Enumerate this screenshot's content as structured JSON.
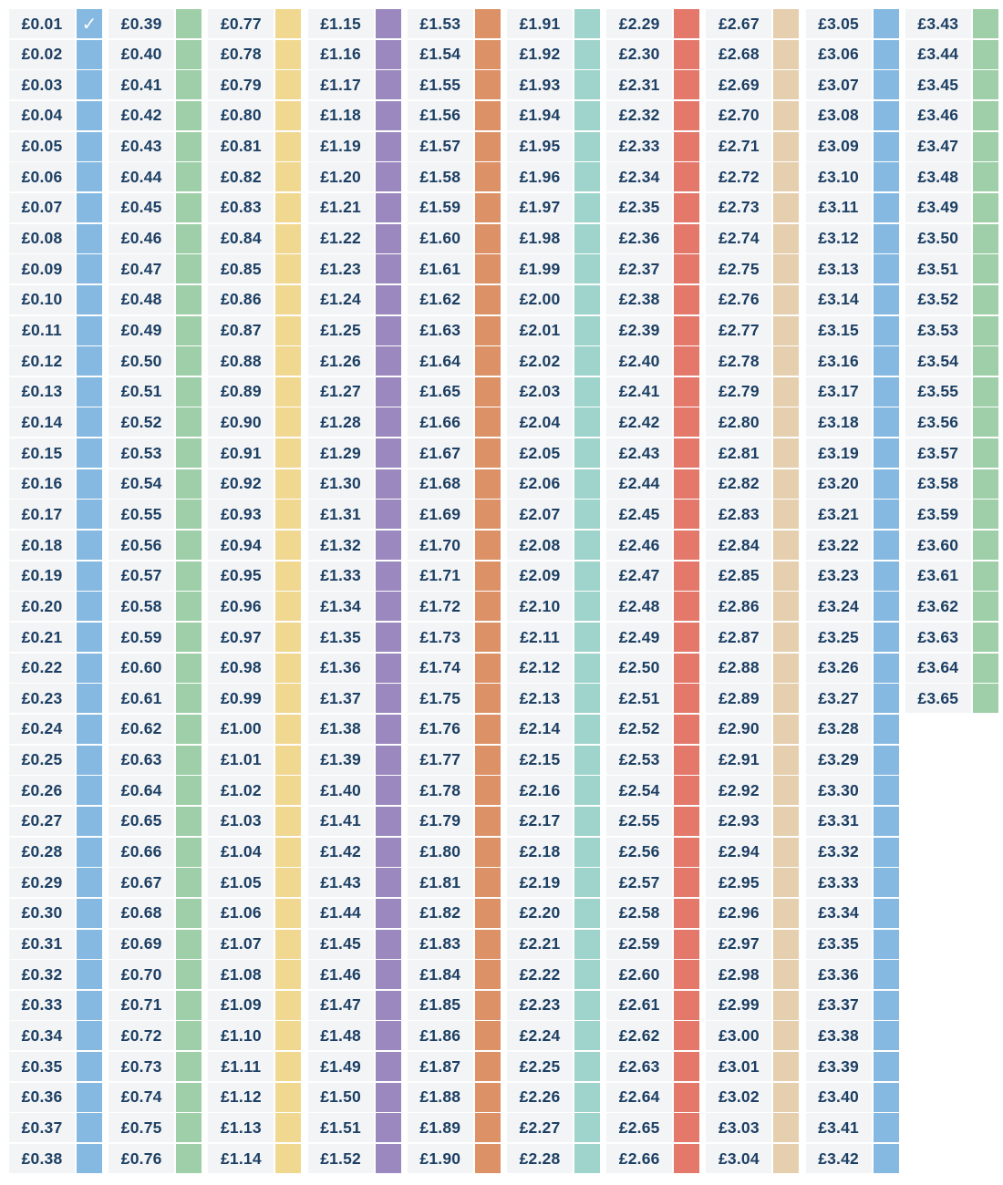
{
  "currency_symbol": "£",
  "start_pence": 1,
  "end_pence": 365,
  "checked_amounts": [
    "£0.01"
  ],
  "check_glyph": "✓",
  "rows_per_column": 38,
  "columns": [
    {
      "from": "£0.01",
      "to": "£0.38",
      "color": "#85b9e1"
    },
    {
      "from": "£0.39",
      "to": "£0.76",
      "color": "#9ecfa8"
    },
    {
      "from": "£0.77",
      "to": "£1.14",
      "color": "#f1d891"
    },
    {
      "from": "£1.15",
      "to": "£1.52",
      "color": "#9a88be"
    },
    {
      "from": "£1.53",
      "to": "£1.90",
      "color": "#dc9266"
    },
    {
      "from": "£1.91",
      "to": "£2.28",
      "color": "#9ed4cb"
    },
    {
      "from": "£2.29",
      "to": "£2.66",
      "color": "#e3786b"
    },
    {
      "from": "£2.67",
      "to": "£3.04",
      "color": "#e5cfae"
    },
    {
      "from": "£3.05",
      "to": "£3.42",
      "color": "#85b9e1"
    },
    {
      "from": "£3.43",
      "to": "£3.65",
      "color": "#9ecfa8"
    }
  ]
}
